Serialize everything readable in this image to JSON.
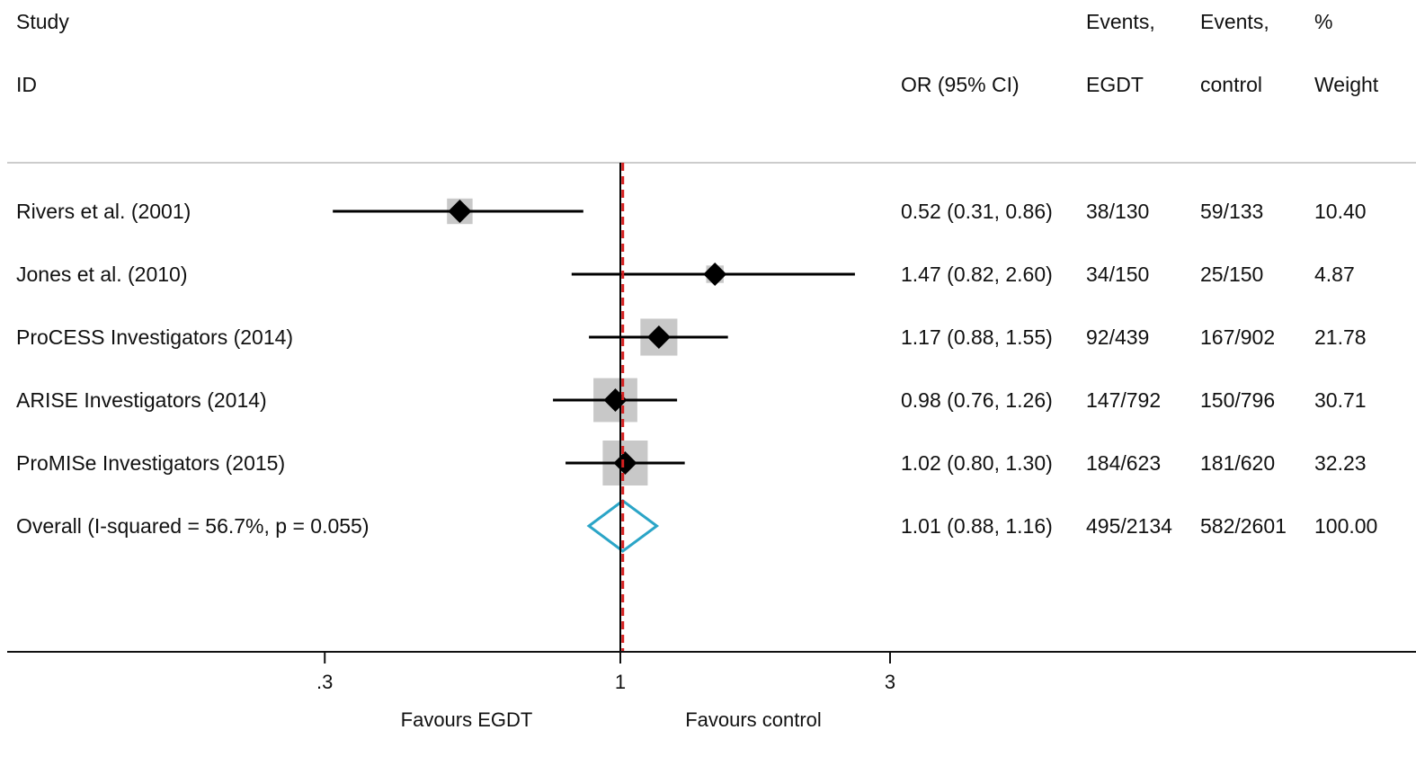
{
  "chart_data": {
    "type": "forest",
    "xscale": "log",
    "x_ticks": [
      {
        "value": 0.3,
        "label": ".3"
      },
      {
        "value": 1,
        "label": "1"
      },
      {
        "value": 3,
        "label": "3"
      }
    ],
    "xlim": [
      0.11,
      30
    ],
    "null_line": 1,
    "overall_line": 1.01,
    "colors": {
      "marker": "#000000",
      "weight_box": "#c8c8c8",
      "overall_diamond": "#2ba5c7",
      "overall_line": "#d62020"
    },
    "headers": {
      "study_line1": "Study",
      "study_line2": "ID",
      "or_label": "OR (95% CI)",
      "egdt_line1": "Events,",
      "egdt_line2": "EGDT",
      "control_line1": "Events,",
      "control_line2": "control",
      "weight_line1": "%",
      "weight_line2": "Weight"
    },
    "studies": [
      {
        "name": "Rivers et al. (2001)",
        "or": 0.52,
        "lo": 0.31,
        "hi": 0.86,
        "or_text": "0.52 (0.31, 0.86)",
        "events_egdt": "38/130",
        "events_control": "59/133",
        "weight": 10.4,
        "weight_text": "10.40"
      },
      {
        "name": "Jones et al. (2010)",
        "or": 1.47,
        "lo": 0.82,
        "hi": 2.6,
        "or_text": "1.47 (0.82, 2.60)",
        "events_egdt": "34/150",
        "events_control": "25/150",
        "weight": 4.87,
        "weight_text": "4.87"
      },
      {
        "name": "ProCESS Investigators (2014)",
        "or": 1.17,
        "lo": 0.88,
        "hi": 1.55,
        "or_text": "1.17 (0.88, 1.55)",
        "events_egdt": "92/439",
        "events_control": "167/902",
        "weight": 21.78,
        "weight_text": "21.78"
      },
      {
        "name": "ARISE Investigators (2014)",
        "or": 0.98,
        "lo": 0.76,
        "hi": 1.26,
        "or_text": "0.98 (0.76, 1.26)",
        "events_egdt": "147/792",
        "events_control": "150/796",
        "weight": 30.71,
        "weight_text": "30.71"
      },
      {
        "name": "ProMISe Investigators (2015)",
        "or": 1.02,
        "lo": 0.8,
        "hi": 1.3,
        "or_text": "1.02 (0.80, 1.30)",
        "events_egdt": "184/623",
        "events_control": "181/620",
        "weight": 32.23,
        "weight_text": "32.23"
      }
    ],
    "overall": {
      "name": "Overall  (I-squared = 56.7%, p = 0.055)",
      "or": 1.01,
      "lo": 0.88,
      "hi": 1.16,
      "or_text": "1.01 (0.88, 1.16)",
      "events_egdt": "495/2134",
      "events_control": "582/2601",
      "weight_text": "100.00"
    },
    "favours_left": "Favours EGDT",
    "favours_right": "Favours control"
  }
}
